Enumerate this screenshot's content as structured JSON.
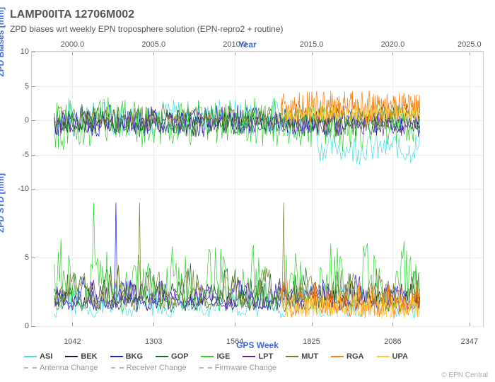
{
  "title": "LAMP00ITA 12706M002",
  "subtitle": "ZPD biases wrt weekly EPN troposphere solution (EPN-repro2 + routine)",
  "credit": "© EPN Central",
  "axes": {
    "top_title": "Year",
    "top_ticks": [
      "2000.0",
      "2005.0",
      "2010.0",
      "2015.0",
      "2020.0",
      "2025.0"
    ],
    "bottom_title": "GPS Week",
    "bottom_ticks": [
      "1042",
      "1303",
      "1564",
      "1825",
      "2086",
      "2347"
    ],
    "y1_title": "ZPD Biases [mm]",
    "y1_ticks": [
      "10",
      "5",
      "0",
      "-5",
      "-10"
    ],
    "y1_lim": [
      -10,
      10
    ],
    "y2_title": "ZPD STD [mm]",
    "y2_ticks": [
      "5",
      "0"
    ],
    "y2_lim": [
      0,
      10
    ]
  },
  "x_range_pct": [
    5,
    86
  ],
  "colors": {
    "ASI": "#40e0e8",
    "BEK": "#1a1a2e",
    "BKG": "#1e1ee0",
    "GOP": "#1a6b1a",
    "IGE": "#30d030",
    "LPT": "#5a1e9e",
    "MUT": "#7a7a2a",
    "RGA": "#ff7f0e",
    "UPA": "#ffcc33",
    "grid": "#eeeeee",
    "border": "#cccccc",
    "event": "#bbbbbb"
  },
  "series": [
    {
      "name": "ASI",
      "biases_band": [
        -2,
        3
      ],
      "std_band": [
        0.5,
        2.5
      ],
      "drop_after": 0.72,
      "drop_to": [
        -6,
        -2
      ]
    },
    {
      "name": "BEK",
      "biases_band": [
        -2,
        1
      ],
      "std_band": [
        1,
        3
      ]
    },
    {
      "name": "BKG",
      "biases_band": [
        -2,
        2
      ],
      "std_band": [
        1,
        3
      ],
      "spikes_std": [
        9,
        5,
        6,
        9
      ]
    },
    {
      "name": "GOP",
      "biases_band": [
        -2,
        2
      ],
      "std_band": [
        1,
        4
      ]
    },
    {
      "name": "IGE",
      "biases_band": [
        -4,
        3
      ],
      "std_band": [
        1,
        6
      ],
      "spikes_std": [
        9,
        8,
        5
      ]
    },
    {
      "name": "LPT",
      "biases_band": [
        -2,
        1
      ],
      "std_band": [
        1,
        3
      ]
    },
    {
      "name": "MUT",
      "biases_band": [
        -1,
        2
      ],
      "std_band": [
        1,
        4
      ],
      "spikes_std": [
        9,
        7
      ]
    },
    {
      "name": "RGA",
      "biases_band": [
        0,
        4
      ],
      "std_band": [
        0.5,
        3
      ],
      "start": 0.62
    },
    {
      "name": "UPA",
      "biases_band": [
        0,
        2
      ],
      "std_band": [
        0.5,
        2
      ],
      "start": 0.62
    }
  ],
  "legend_series": [
    "ASI",
    "BEK",
    "BKG",
    "GOP",
    "IGE",
    "LPT",
    "MUT",
    "RGA",
    "UPA"
  ],
  "legend_events": [
    "Antenna Change",
    "Receiver Change",
    "Firmware Change"
  ],
  "line_width": 0.7,
  "font_sizes": {
    "title": 16,
    "subtitle": 12,
    "axis_label": 12,
    "tick": 11,
    "legend": 11
  }
}
